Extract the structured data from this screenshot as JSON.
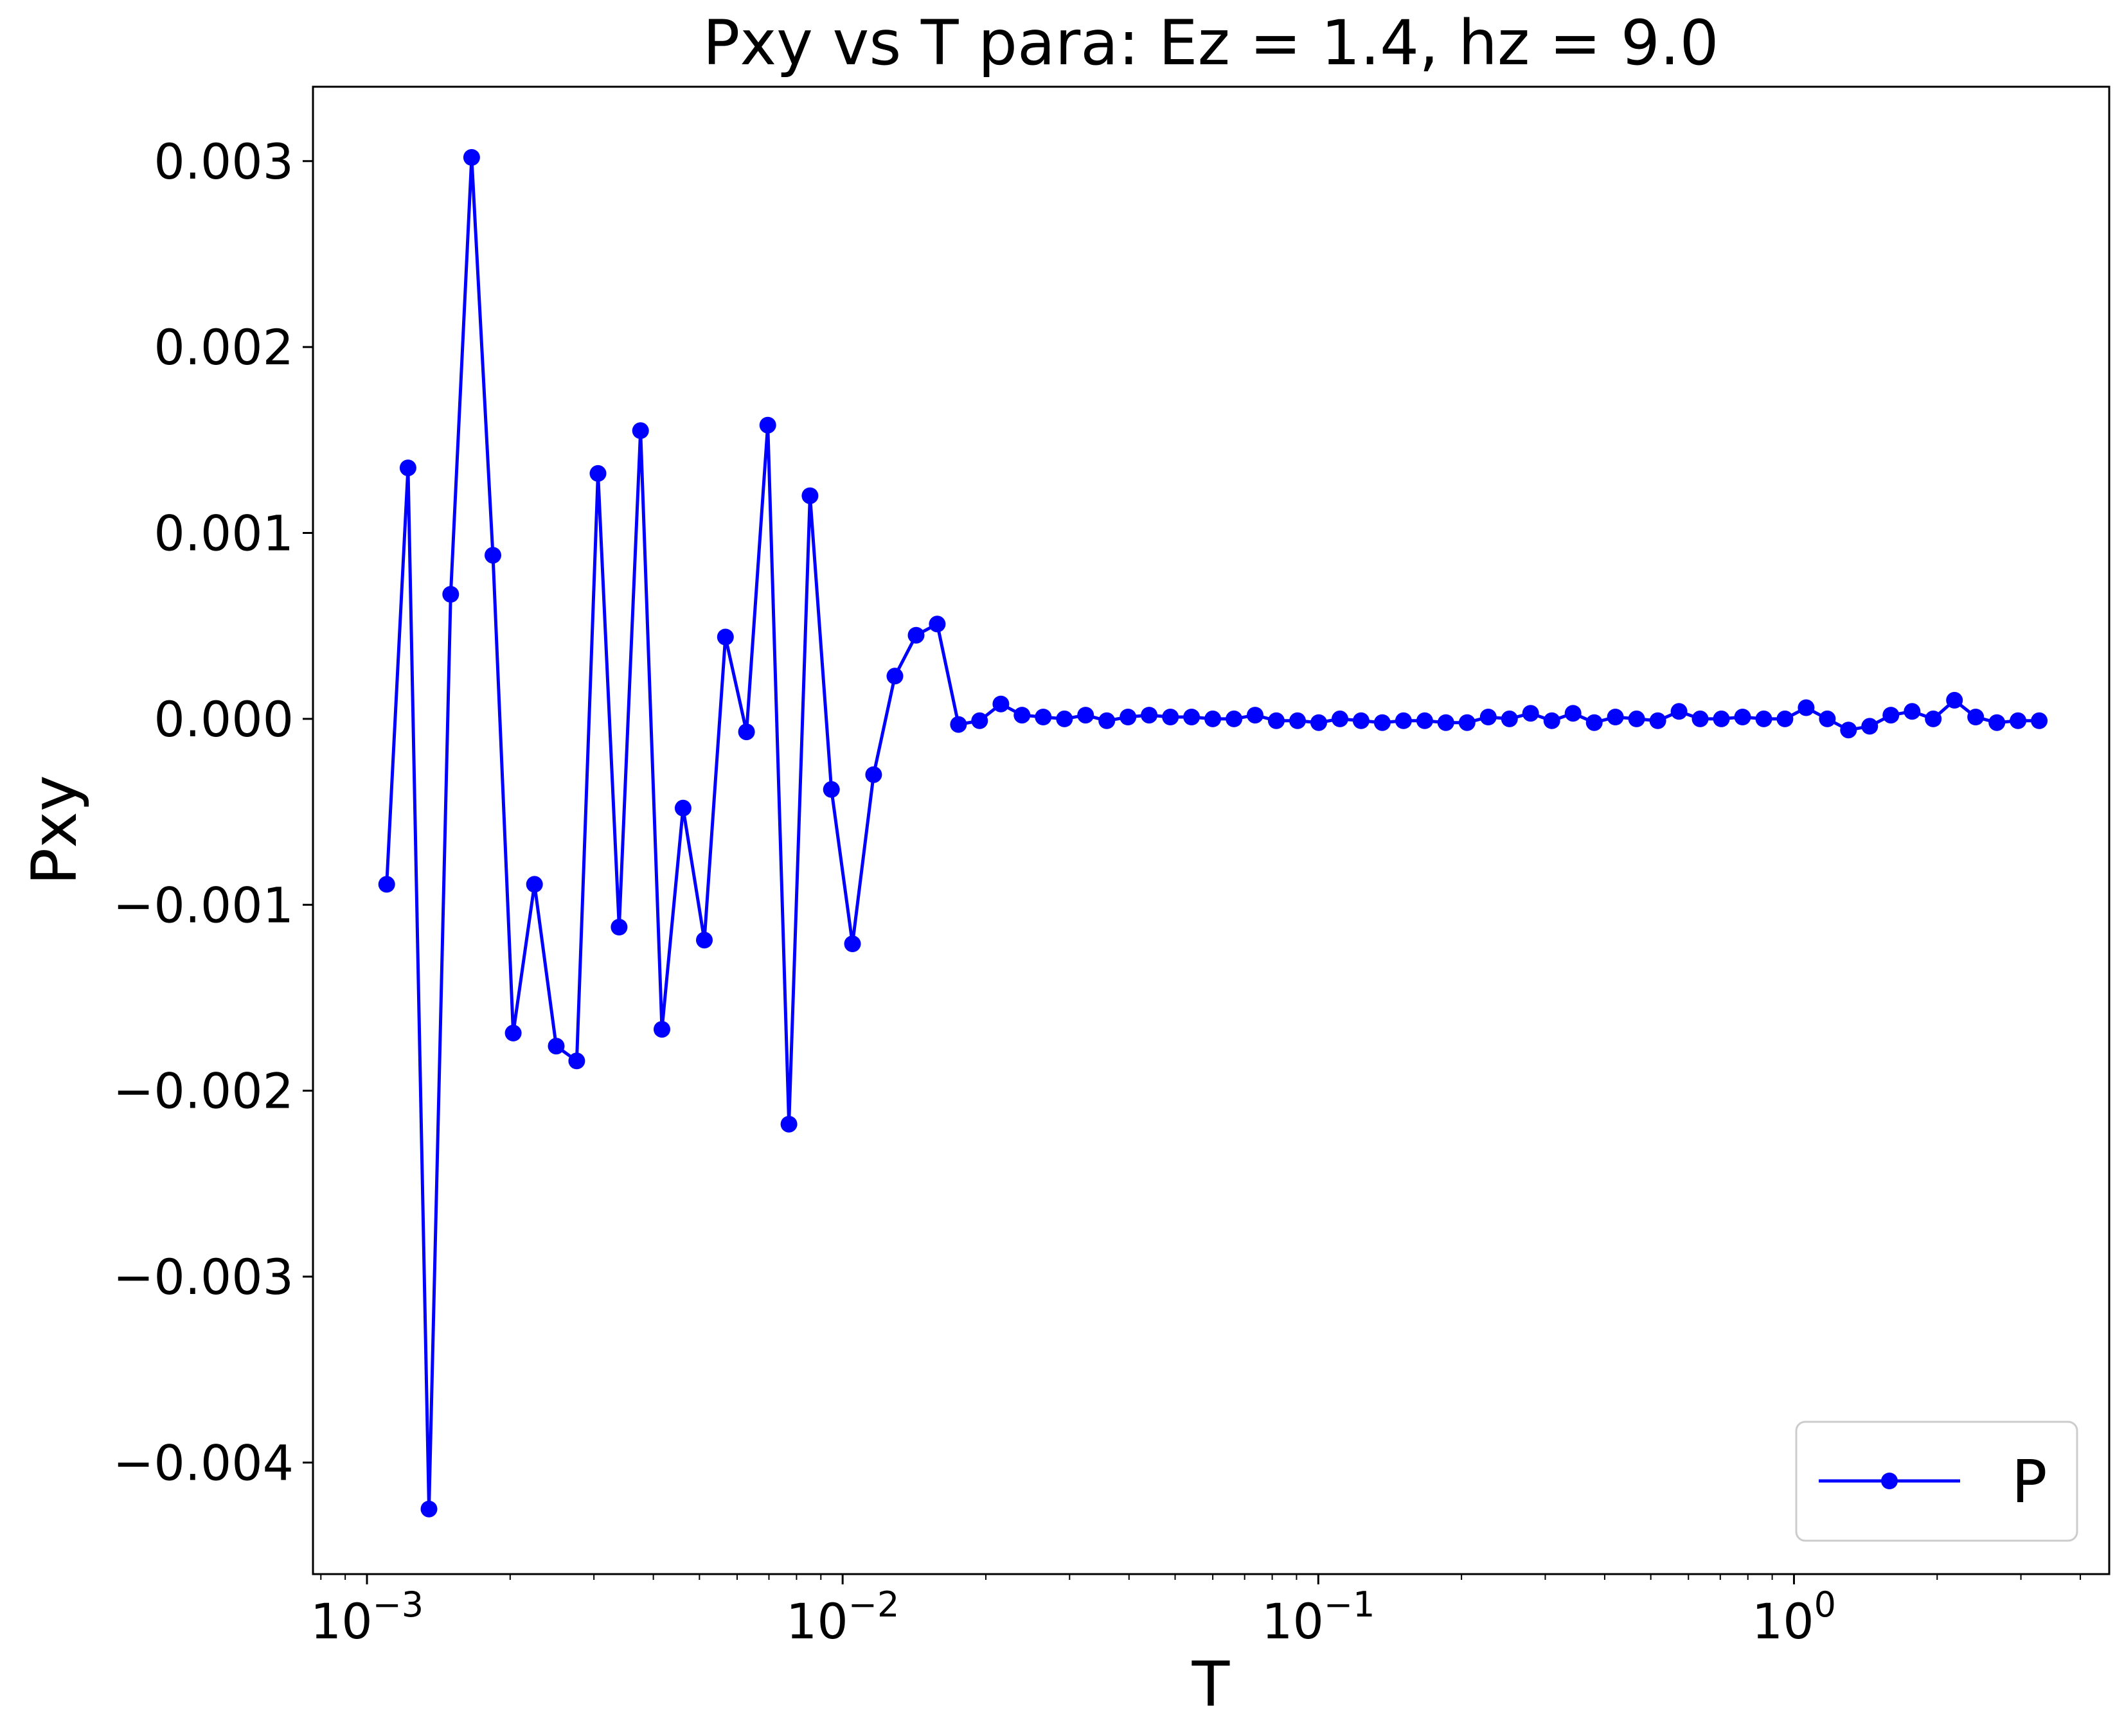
{
  "chart_data": {
    "type": "line",
    "title": "Pxy vs T para: Ez = 1.4, hz = 9.0",
    "xlabel": "T",
    "ylabel": "Pxy",
    "xscale": "log",
    "xlim": [
      0.00077,
      4.6
    ],
    "ylim": [
      -0.0046,
      0.0034
    ],
    "x_ticks": [
      0.001,
      0.01,
      0.1,
      1
    ],
    "x_tick_labels": [
      {
        "base": "10",
        "exp": "−3"
      },
      {
        "base": "10",
        "exp": "−2"
      },
      {
        "base": "10",
        "exp": "−1"
      },
      {
        "base": "10",
        "exp": "0"
      }
    ],
    "y_ticks": [
      0.003,
      0.002,
      0.001,
      0.0,
      -0.001,
      -0.002,
      -0.003,
      -0.004
    ],
    "y_tick_labels": [
      "0.003",
      "0.002",
      "0.001",
      "0.000",
      "−0.001",
      "−0.002",
      "−0.003",
      "−0.004"
    ],
    "grid": false,
    "legend": {
      "position": "bottom-right",
      "entries": [
        "P"
      ]
    },
    "colors": {
      "series": "#0000ff"
    },
    "series": [
      {
        "name": "P",
        "marker": "circle",
        "x": [
          0.0011,
          0.00122,
          0.00135,
          0.0015,
          0.00166,
          0.00184,
          0.00203,
          0.00225,
          0.0025,
          0.00276,
          0.00306,
          0.00339,
          0.00376,
          0.00417,
          0.00462,
          0.00512,
          0.00567,
          0.00628,
          0.00696,
          0.00771,
          0.00854,
          0.00947,
          0.01049,
          0.01162,
          0.01288,
          0.01427,
          0.01581,
          0.01752,
          0.01941,
          0.02151,
          0.02383,
          0.02641,
          0.02926,
          0.03242,
          0.03592,
          0.0398,
          0.0441,
          0.04887,
          0.05415,
          0.06,
          0.06648,
          0.07366,
          0.08162,
          0.09044,
          0.10021,
          0.11104,
          0.12303,
          0.13632,
          0.15105,
          0.16737,
          0.18545,
          0.20548,
          0.22768,
          0.25228,
          0.27953,
          0.30973,
          0.34319,
          0.38026,
          0.42134,
          0.46686,
          0.51729,
          0.57317,
          0.63509,
          0.7037,
          0.77972,
          0.86395,
          0.95728,
          1.06069,
          1.17528,
          1.30224,
          1.44292,
          1.59879,
          1.7715,
          1.96288,
          2.17492,
          2.40987,
          2.6702,
          2.95866,
          3.27827
        ],
        "y": [
          -0.00089,
          0.00135,
          -0.00425,
          0.00067,
          0.00302,
          0.00088,
          -0.00169,
          -0.00089,
          -0.00176,
          -0.00184,
          0.00132,
          -0.00112,
          0.00155,
          -0.00167,
          -0.00048,
          -0.00119,
          0.00044,
          -7e-05,
          0.00158,
          -0.00218,
          0.0012,
          -0.00038,
          -0.00121,
          -0.0003,
          0.00023,
          0.00045,
          0.00051,
          -3e-05,
          -1e-05,
          8e-05,
          2e-05,
          1e-05,
          0.0,
          2e-05,
          -1e-05,
          1e-05,
          2e-05,
          1e-05,
          1e-05,
          0.0,
          0.0,
          2e-05,
          -1e-05,
          -1e-05,
          -2e-05,
          0.0,
          -1e-05,
          -2e-05,
          -1e-05,
          -1e-05,
          -2e-05,
          -2e-05,
          1e-05,
          0.0,
          3e-05,
          -1e-05,
          3e-05,
          -2e-05,
          1e-05,
          0.0,
          -1e-05,
          4e-05,
          0.0,
          0.0,
          1e-05,
          0.0,
          0.0,
          6e-05,
          0.0,
          -6e-05,
          -4e-05,
          2e-05,
          4e-05,
          0.0,
          0.0001,
          1e-05,
          -2e-05,
          -1e-05,
          -1e-05
        ]
      }
    ]
  }
}
